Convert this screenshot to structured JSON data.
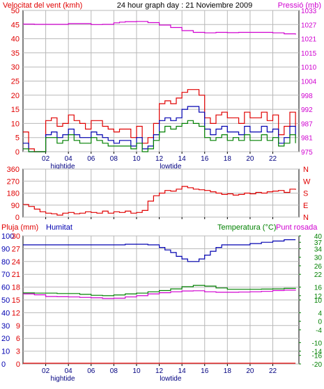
{
  "page": {
    "header_title": "24 hour graph day : 21 Noviembre 2009"
  },
  "colors": {
    "red": "#e00000",
    "blue": "#0000b0",
    "green": "#008000",
    "magenta": "#d000d0",
    "grid": "#b8b8b8",
    "frame": "#000000",
    "bg": "#ffffff"
  },
  "x_axis": {
    "ticks": [
      "02",
      "04",
      "06",
      "08",
      "10",
      "12",
      "14",
      "16",
      "18",
      "20",
      "22"
    ],
    "tick_hours": [
      2,
      4,
      6,
      8,
      10,
      12,
      14,
      16,
      18,
      20,
      22
    ],
    "tide_labels": [
      {
        "text": "hightide",
        "hour": 3.5
      },
      {
        "text": "lowtide",
        "hour": 13.0
      }
    ],
    "hour_range": [
      0,
      24.3
    ]
  },
  "chart_data": [
    {
      "type": "line",
      "id": "wind-pressure",
      "left_label": "Velocitat del vent (kmh)",
      "right_label": "Pressió (mb)",
      "ylim_left": [
        0,
        50
      ],
      "left_ticks": [
        "0",
        "5",
        "10",
        "15",
        "20",
        "25",
        "30",
        "35",
        "40",
        "45",
        "50"
      ],
      "ylim_right": [
        975,
        1033
      ],
      "right_ticks": [
        "975",
        "981",
        "987",
        "992",
        "998",
        "1004",
        "1010",
        "1015",
        "1021",
        "1027",
        "1033"
      ],
      "grid": true,
      "series": [
        {
          "color": "#e00000",
          "axis": "left",
          "x": [
            0,
            0.5,
            1,
            1.5,
            2,
            2.5,
            3,
            3.5,
            4,
            4.5,
            5,
            5.5,
            6,
            6.5,
            7,
            7.5,
            8,
            8.5,
            9,
            9.5,
            10,
            10.5,
            11,
            11.5,
            12,
            12.5,
            13,
            13.5,
            14,
            14.5,
            15,
            15.5,
            16,
            16.5,
            17,
            17.5,
            18,
            18.5,
            19,
            19.5,
            20,
            20.5,
            21,
            21.5,
            22,
            22.5,
            23,
            23.5,
            24
          ],
          "y": [
            7,
            1,
            0,
            0,
            11,
            12,
            9,
            10,
            13,
            11,
            10,
            8,
            11,
            11,
            9,
            8,
            7,
            8,
            8,
            5,
            9,
            3,
            5,
            10,
            17,
            18,
            17,
            19,
            21,
            22,
            22,
            20,
            12,
            10,
            13,
            14,
            12,
            12,
            10,
            14,
            12,
            12,
            14,
            11,
            13,
            6,
            9,
            14,
            9
          ]
        },
        {
          "color": "#0000b0",
          "axis": "left",
          "x": [
            0,
            0.5,
            1,
            1.5,
            2,
            2.5,
            3,
            3.5,
            4,
            4.5,
            5,
            5.5,
            6,
            6.5,
            7,
            7.5,
            8,
            8.5,
            9,
            9.5,
            10,
            10.5,
            11,
            11.5,
            12,
            12.5,
            13,
            13.5,
            14,
            14.5,
            15,
            15.5,
            16,
            16.5,
            17,
            17.5,
            18,
            18.5,
            19,
            19.5,
            20,
            20.5,
            21,
            21.5,
            22,
            22.5,
            23,
            23.5,
            24
          ],
          "y": [
            3,
            0,
            0,
            0,
            6,
            7,
            5,
            6,
            8,
            6,
            5,
            5,
            7,
            6,
            5,
            4,
            3,
            4,
            4,
            2,
            5,
            1,
            2,
            6,
            11,
            12,
            11,
            12,
            15,
            16,
            16,
            14,
            8,
            6,
            8,
            9,
            7,
            7,
            6,
            9,
            7,
            7,
            9,
            7,
            8,
            3,
            5,
            9,
            5
          ]
        },
        {
          "color": "#008000",
          "axis": "left",
          "x": [
            0,
            0.5,
            1,
            1.5,
            2,
            2.5,
            3,
            3.5,
            4,
            4.5,
            5,
            5.5,
            6,
            6.5,
            7,
            7.5,
            8,
            8.5,
            9,
            9.5,
            10,
            10.5,
            11,
            11.5,
            12,
            12.5,
            13,
            13.5,
            14,
            14.5,
            15,
            15.5,
            16,
            16.5,
            17,
            17.5,
            18,
            18.5,
            19,
            19.5,
            20,
            20.5,
            21,
            21.5,
            22,
            22.5,
            23,
            23.5,
            24
          ],
          "y": [
            1,
            0,
            0,
            0,
            5,
            5,
            3,
            4,
            6,
            4,
            3,
            3,
            5,
            4,
            3,
            2,
            2,
            2,
            2,
            1,
            3,
            0,
            1,
            4,
            7,
            9,
            8,
            9,
            10,
            11,
            10,
            9,
            5,
            4,
            5,
            6,
            4,
            5,
            4,
            6,
            4,
            4,
            6,
            4,
            5,
            2,
            3,
            6,
            3
          ]
        },
        {
          "color": "#d000d0",
          "axis": "right",
          "x": [
            0,
            1,
            2,
            3,
            4,
            5,
            6,
            7,
            8,
            8.5,
            9,
            10,
            11,
            12,
            13,
            14,
            15,
            16,
            17,
            18,
            19,
            20,
            21,
            22,
            23,
            24
          ],
          "y": [
            1027.4,
            1027.3,
            1027.3,
            1027.3,
            1027.6,
            1027.6,
            1027.2,
            1027.3,
            1027.9,
            1028.2,
            1028.4,
            1028.5,
            1028.0,
            1027.0,
            1026.0,
            1024.7,
            1024.0,
            1023.8,
            1024.0,
            1023.9,
            1024.0,
            1024.0,
            1024.0,
            1023.8,
            1023.4,
            1023.1
          ]
        }
      ]
    },
    {
      "type": "line",
      "id": "wind-direction",
      "ylim": [
        0,
        360
      ],
      "left_ticks": [
        "0",
        "90",
        "180",
        "270",
        "360"
      ],
      "right_labels": [
        "N",
        "W",
        "S",
        "E",
        "N"
      ],
      "grid": true,
      "series": [
        {
          "color": "#e00000",
          "x": [
            0,
            0.5,
            1,
            1.5,
            2,
            2.5,
            3,
            3.5,
            4,
            4.5,
            5,
            5.5,
            6,
            6.5,
            7,
            7.5,
            8,
            8.5,
            9,
            9.5,
            10,
            10.5,
            11,
            11.5,
            12,
            12.5,
            13,
            13.5,
            14,
            14.5,
            15,
            15.5,
            16,
            16.5,
            17,
            17.5,
            18,
            18.5,
            19,
            19.5,
            20,
            20.5,
            21,
            21.5,
            22,
            22.5,
            23,
            23.5,
            24
          ],
          "y": [
            95,
            80,
            60,
            40,
            30,
            25,
            15,
            30,
            35,
            25,
            30,
            40,
            35,
            30,
            45,
            30,
            40,
            35,
            45,
            30,
            35,
            50,
            120,
            160,
            180,
            200,
            195,
            210,
            230,
            220,
            210,
            205,
            200,
            190,
            180,
            170,
            175,
            165,
            170,
            180,
            175,
            185,
            180,
            190,
            195,
            200,
            185,
            210,
            205
          ]
        }
      ]
    },
    {
      "type": "line",
      "id": "rain-humidity-temp",
      "left_label_rain": "Pluja (mm)",
      "left_label_hum": "Humitat",
      "right_label_temp": "Temperatura (°C)",
      "right_label_dew": "Punt rosada",
      "ylim_humidity": [
        0,
        100
      ],
      "humidity_ticks": [
        "0",
        "10",
        "20",
        "30",
        "40",
        "50",
        "60",
        "70",
        "80",
        "90",
        "100"
      ],
      "rain_ticks": [
        "0",
        "3",
        "6",
        "9",
        "12",
        "15",
        "18",
        "21",
        "24",
        "27",
        "30"
      ],
      "ylim_temp": [
        -20,
        40
      ],
      "temp_ticks": [
        "-20",
        "-16",
        "-14",
        "-10",
        "-4",
        "0",
        "4",
        "10",
        "12",
        "16",
        "22",
        "26",
        "30",
        "34",
        "37",
        "40"
      ],
      "temp_tick_values": [
        -20,
        -16,
        -14,
        -10,
        -4,
        0,
        4,
        10,
        12,
        16,
        22,
        26,
        30,
        34,
        37,
        40
      ],
      "grid": true,
      "series": [
        {
          "color": "#0000b0",
          "axis": "humidity",
          "x": [
            0,
            1,
            2,
            3,
            4,
            5,
            6,
            7,
            8,
            9,
            10,
            11,
            12,
            12.5,
            13,
            13.5,
            14,
            14.5,
            15,
            15.5,
            16,
            16.5,
            17,
            17.5,
            18,
            19,
            20,
            21,
            22,
            23,
            24
          ],
          "y": [
            93,
            93,
            93,
            93,
            93,
            93,
            93,
            93,
            93,
            93.5,
            93.5,
            93,
            91,
            89,
            87,
            84,
            82,
            80,
            80,
            82,
            85,
            88,
            91,
            93,
            93,
            93,
            94,
            95,
            96,
            97,
            97
          ]
        },
        {
          "color": "#008000",
          "axis": "temp",
          "x": [
            0,
            1,
            2,
            3,
            4,
            5,
            6,
            7,
            8,
            9,
            10,
            11,
            12,
            13,
            14,
            15,
            16,
            17,
            18,
            19,
            20,
            21,
            22,
            23,
            24
          ],
          "y": [
            13.3,
            13.2,
            13.2,
            13.0,
            13.0,
            12.6,
            12.2,
            12.0,
            12.3,
            12.8,
            13.2,
            13.8,
            14.4,
            15.2,
            16.2,
            16.8,
            16.5,
            15.6,
            15.0,
            15.0,
            15.0,
            15.1,
            15.2,
            15.4,
            15.6
          ]
        },
        {
          "color": "#d000d0",
          "axis": "temp",
          "x": [
            0,
            1,
            2,
            3,
            4,
            5,
            6,
            7,
            8,
            9,
            10,
            11,
            12,
            13,
            14,
            15,
            16,
            17,
            18,
            19,
            20,
            21,
            22,
            23,
            24
          ],
          "y": [
            12.8,
            12.4,
            11.6,
            11.5,
            11.4,
            11.2,
            11.0,
            10.7,
            10.8,
            11.4,
            12.0,
            12.8,
            13.4,
            13.8,
            14.2,
            14.3,
            13.8,
            13.6,
            13.6,
            13.7,
            13.8,
            14.0,
            14.4,
            14.6,
            14.8
          ]
        },
        {
          "color": "#e00000",
          "axis": "rain",
          "x": [
            0,
            24
          ],
          "y": [
            0,
            0
          ]
        }
      ]
    }
  ]
}
